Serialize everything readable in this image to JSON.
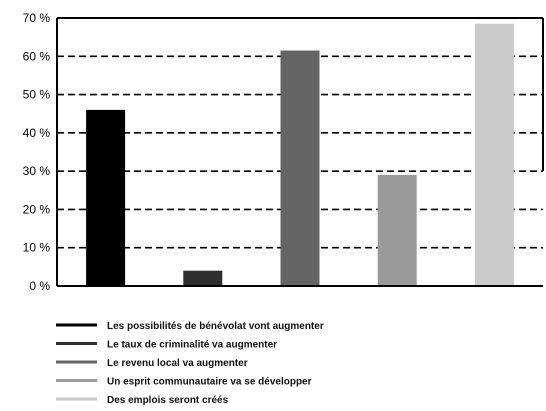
{
  "chart_data": {
    "type": "bar",
    "title": "",
    "xlabel": "",
    "ylabel": "",
    "ylim": [
      0,
      70
    ],
    "ytick_values": [
      0,
      10,
      20,
      30,
      40,
      50,
      60,
      70
    ],
    "ytick_labels": [
      "0 %",
      "10 %",
      "20 %",
      "30 %",
      "40 %",
      "50 %",
      "60 %",
      "70 %"
    ],
    "grid": "horizontal dashed",
    "legend_position": "bottom",
    "categories": [
      "Les possibilités de bénévolat vont augmenter",
      "Le taux de criminalité va augmenter",
      "Le revenu local va augmenter",
      "Un esprit communautaire va se développer",
      "Des emplois seront créés"
    ],
    "values": [
      46,
      4,
      61.5,
      29,
      68.5
    ],
    "colors": [
      "#000000",
      "#2e2e2e",
      "#646464",
      "#9a9a9a",
      "#cbcbcb"
    ]
  }
}
